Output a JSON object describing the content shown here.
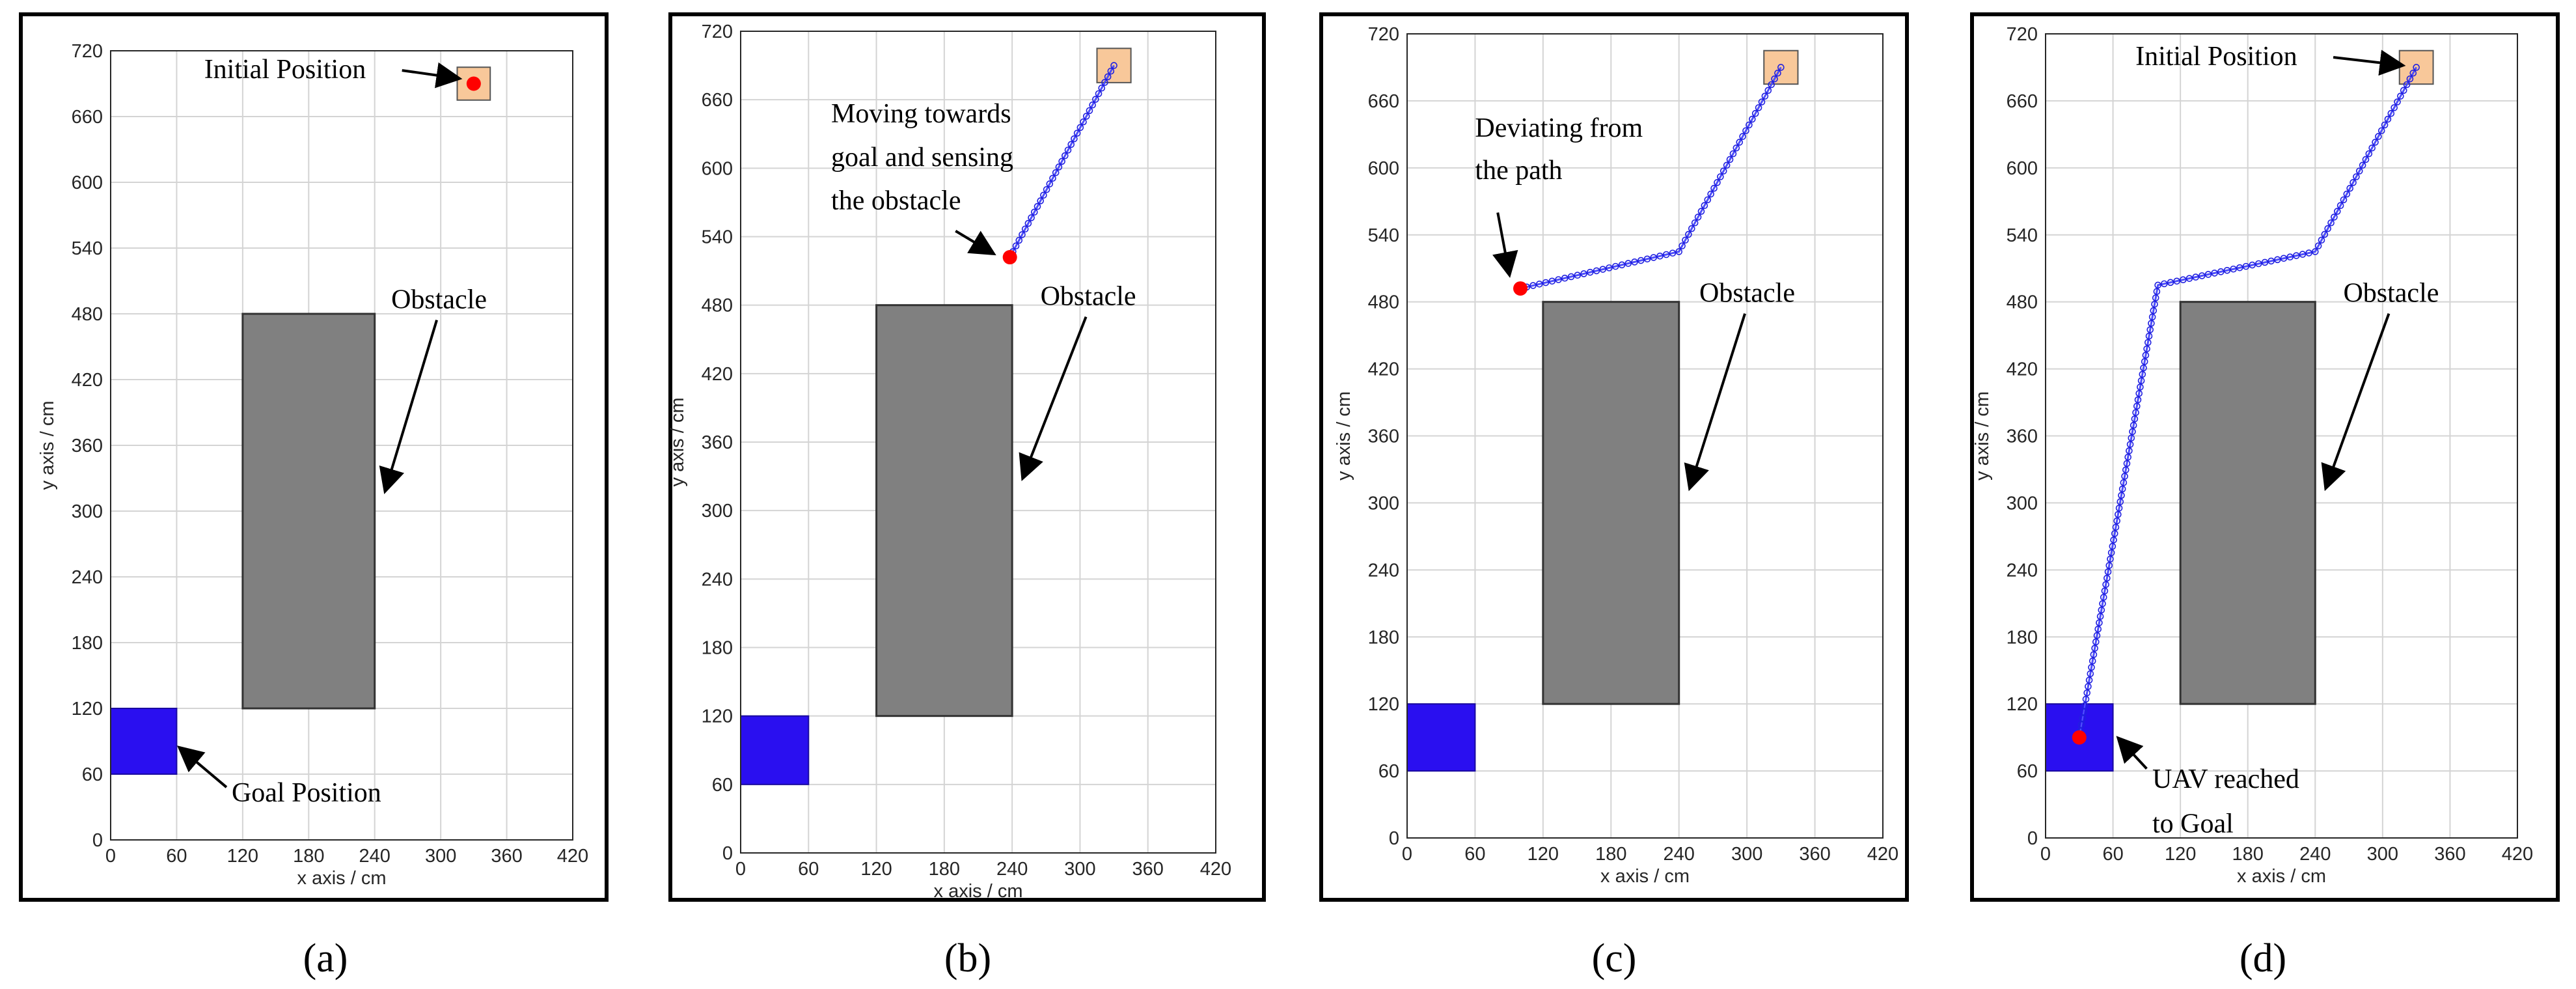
{
  "chart_data": [
    {
      "type": "scatter",
      "caption": "(a)",
      "xlabel": "x axis / cm",
      "ylabel": "y axis / cm",
      "xlim": [
        0,
        420
      ],
      "ylim": [
        0,
        720
      ],
      "xticks": [
        0,
        60,
        120,
        180,
        240,
        300,
        360,
        420
      ],
      "yticks": [
        0,
        60,
        120,
        180,
        240,
        300,
        360,
        420,
        480,
        540,
        600,
        660,
        720
      ],
      "grid": true,
      "obstacle": {
        "x": [
          120,
          240
        ],
        "y": [
          120,
          480
        ]
      },
      "goal": {
        "x": [
          0,
          60
        ],
        "y": [
          60,
          120
        ]
      },
      "initial": {
        "x": [
          315,
          345
        ],
        "y": [
          675,
          705
        ]
      },
      "uav": {
        "x": 330,
        "y": 690
      },
      "path": [],
      "annotations": [
        {
          "text": "Initial Position",
          "x": 85,
          "y": 695,
          "ax": 315,
          "ay": 695
        },
        {
          "text": "Obstacle",
          "x": 255,
          "y": 485,
          "ax": 250,
          "ay": 320
        },
        {
          "text": "Goal Position",
          "x": 110,
          "y": 35,
          "ax": 64,
          "ay": 83
        }
      ]
    },
    {
      "type": "scatter",
      "caption": "(b)",
      "xlabel": "x axis / cm",
      "ylabel": "y axis / cm",
      "xlim": [
        0,
        420
      ],
      "ylim": [
        0,
        720
      ],
      "xticks": [
        0,
        60,
        120,
        180,
        240,
        300,
        360,
        420
      ],
      "yticks": [
        0,
        60,
        120,
        180,
        240,
        300,
        360,
        420,
        480,
        540,
        600,
        660,
        720
      ],
      "grid": true,
      "obstacle": {
        "x": [
          120,
          240
        ],
        "y": [
          120,
          480
        ]
      },
      "goal": {
        "x": [
          0,
          60
        ],
        "y": [
          60,
          120
        ]
      },
      "initial": {
        "x": [
          315,
          345
        ],
        "y": [
          675,
          705
        ]
      },
      "uav": {
        "x": 238,
        "y": 522
      },
      "path": [
        [
          330,
          690
        ],
        [
          238,
          522
        ]
      ],
      "annotations": [
        {
          "text": "Moving towards",
          "x": 80,
          "y": 640
        },
        {
          "text": "goal  and sensing",
          "x": 80,
          "y": 602
        },
        {
          "text": "the obstacle",
          "x": 80,
          "y": 564,
          "ax": 222,
          "ay": 526,
          "sx": 190,
          "sy": 545
        },
        {
          "text": "Obstacle",
          "x": 265,
          "y": 480,
          "ax": 250,
          "ay": 330
        }
      ]
    },
    {
      "type": "scatter",
      "caption": "(c)",
      "xlabel": "x axis / cm",
      "ylabel": "y axis / cm",
      "xlim": [
        0,
        420
      ],
      "ylim": [
        0,
        720
      ],
      "xticks": [
        0,
        60,
        120,
        180,
        240,
        300,
        360,
        420
      ],
      "yticks": [
        0,
        60,
        120,
        180,
        240,
        300,
        360,
        420,
        480,
        540,
        600,
        660,
        720
      ],
      "grid": true,
      "obstacle": {
        "x": [
          120,
          240
        ],
        "y": [
          120,
          480
        ]
      },
      "goal": {
        "x": [
          0,
          60
        ],
        "y": [
          60,
          120
        ]
      },
      "initial": {
        "x": [
          315,
          345
        ],
        "y": [
          675,
          705
        ]
      },
      "uav": {
        "x": 100,
        "y": 492
      },
      "path": [
        [
          330,
          690
        ],
        [
          240,
          525
        ],
        [
          100,
          492
        ]
      ],
      "annotations": [
        {
          "text": "Deviating from",
          "x": 60,
          "y": 628
        },
        {
          "text": "the path",
          "x": 60,
          "y": 590,
          "ax": 90,
          "ay": 506,
          "sx": 80,
          "sy": 560
        },
        {
          "text": "Obstacle",
          "x": 258,
          "y": 480,
          "ax": 250,
          "ay": 315
        }
      ]
    },
    {
      "type": "scatter",
      "caption": "(d)",
      "xlabel": "x axis / cm",
      "ylabel": "y axis / cm",
      "xlim": [
        0,
        420
      ],
      "ylim": [
        0,
        720
      ],
      "xticks": [
        0,
        60,
        120,
        180,
        240,
        300,
        360,
        420
      ],
      "yticks": [
        0,
        60,
        120,
        180,
        240,
        300,
        360,
        420,
        480,
        540,
        600,
        660,
        720
      ],
      "grid": true,
      "obstacle": {
        "x": [
          120,
          240
        ],
        "y": [
          120,
          480
        ]
      },
      "goal": {
        "x": [
          0,
          60
        ],
        "y": [
          60,
          120
        ]
      },
      "initial": {
        "x": [
          315,
          345
        ],
        "y": [
          675,
          705
        ]
      },
      "uav": {
        "x": 30,
        "y": 90
      },
      "path": [
        [
          330,
          690
        ],
        [
          240,
          525
        ],
        [
          100,
          495
        ],
        [
          30,
          90
        ]
      ],
      "annotations": [
        {
          "text": "Initial Position",
          "x": 80,
          "y": 692,
          "ax": 316,
          "ay": 692
        },
        {
          "text": "Obstacle",
          "x": 265,
          "y": 480,
          "ax": 250,
          "ay": 315
        },
        {
          "text": "UAV reached",
          "x": 95,
          "y": 45,
          "ax": 66,
          "ay": 88,
          "sx": 90,
          "sy": 62
        },
        {
          "text": "to Goal",
          "x": 95,
          "y": 5
        }
      ]
    }
  ]
}
